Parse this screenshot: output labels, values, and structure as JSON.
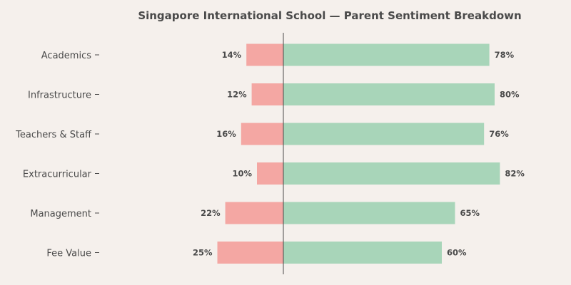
{
  "chart_data": {
    "type": "bar",
    "orientation": "horizontal-diverging",
    "title": "Singapore International School — Parent Sentiment Breakdown",
    "categories": [
      "Academics",
      "Infrastructure",
      "Teachers & Staff",
      "Extracurricular",
      "Management",
      "Fee Value"
    ],
    "series": [
      {
        "key": "negative",
        "values": [
          14,
          12,
          16,
          10,
          22,
          25
        ],
        "labels": [
          "14%",
          "12%",
          "16%",
          "10%",
          "22%",
          "25%"
        ],
        "color": "#f4a7a3"
      },
      {
        "key": "positive",
        "values": [
          78,
          80,
          76,
          82,
          65,
          60
        ],
        "labels": [
          "78%",
          "80%",
          "76%",
          "82%",
          "65%",
          "60%"
        ],
        "color": "#a8d5b9"
      }
    ],
    "zero_line_color": "#4a4a4a",
    "grid": false,
    "legend": false
  }
}
